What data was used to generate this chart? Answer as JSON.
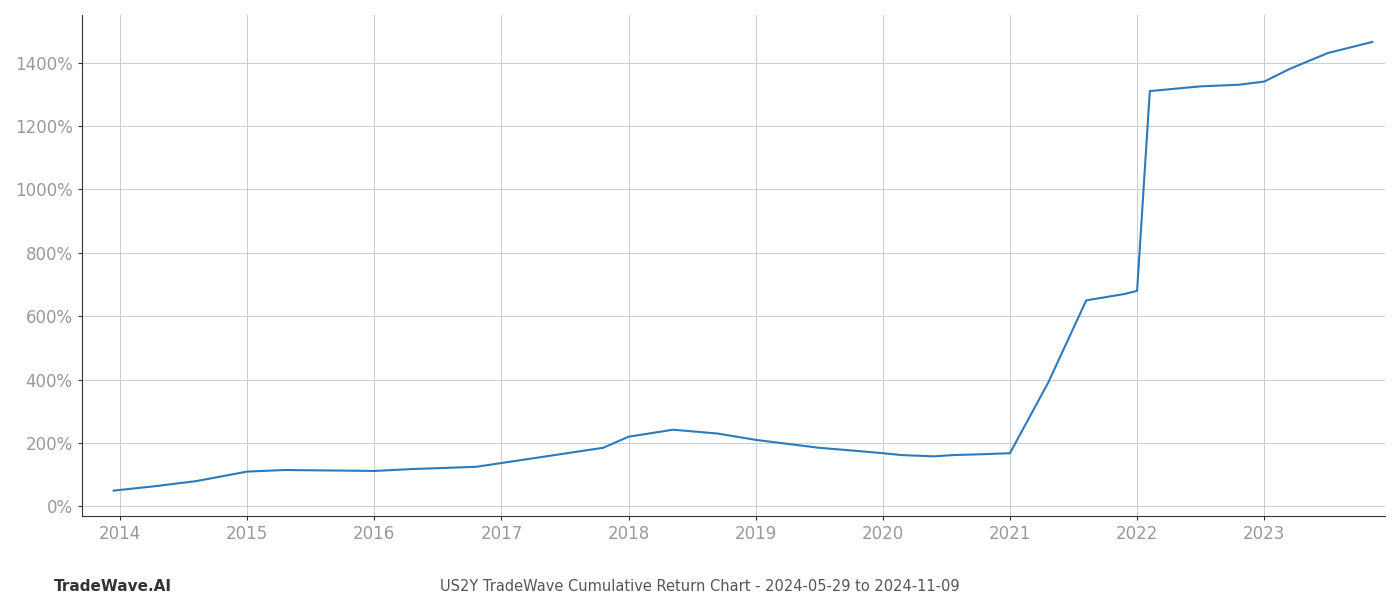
{
  "x_values": [
    2013.95,
    2014.3,
    2014.6,
    2015.0,
    2015.3,
    2016.0,
    2016.3,
    2016.8,
    2017.3,
    2017.8,
    2018.0,
    2018.35,
    2018.7,
    2019.0,
    2019.3,
    2019.5,
    2019.8,
    2020.0,
    2020.15,
    2020.4,
    2020.55,
    2020.8,
    2021.0,
    2021.3,
    2021.6,
    2021.9,
    2022.0,
    2022.1,
    2022.5,
    2022.8,
    2023.0,
    2023.2,
    2023.5,
    2023.85
  ],
  "y_values": [
    50,
    65,
    80,
    110,
    115,
    112,
    118,
    125,
    155,
    185,
    220,
    242,
    230,
    210,
    195,
    185,
    175,
    168,
    162,
    158,
    162,
    165,
    168,
    390,
    650,
    670,
    680,
    1310,
    1325,
    1330,
    1340,
    1380,
    1430,
    1465
  ],
  "line_color": "#2b7bba",
  "line_width": 1.5,
  "background_color": "#ffffff",
  "grid_color": "#cccccc",
  "title": "US2Y TradeWave Cumulative Return Chart - 2024-05-29 to 2024-11-09",
  "watermark": "TradeWave.AI",
  "xlabel": "",
  "ylabel": "",
  "xlim": [
    2013.7,
    2023.95
  ],
  "ylim": [
    -30,
    1550
  ],
  "xtick_labels": [
    "2014",
    "2015",
    "2016",
    "2017",
    "2018",
    "2019",
    "2020",
    "2021",
    "2022",
    "2023"
  ],
  "xtick_positions": [
    2014,
    2015,
    2016,
    2017,
    2018,
    2019,
    2020,
    2021,
    2022,
    2023
  ],
  "ytick_positions": [
    0,
    200,
    400,
    600,
    800,
    1000,
    1200,
    1400
  ],
  "ytick_labels": [
    "0%",
    "200%",
    "400%",
    "600%",
    "800%",
    "1000%",
    "1200%",
    "1400%"
  ],
  "title_fontsize": 10.5,
  "tick_fontsize": 12,
  "watermark_fontsize": 11,
  "axis_label_color": "#999999",
  "title_color": "#555555",
  "watermark_color": "#333333",
  "spine_color": "#333333"
}
